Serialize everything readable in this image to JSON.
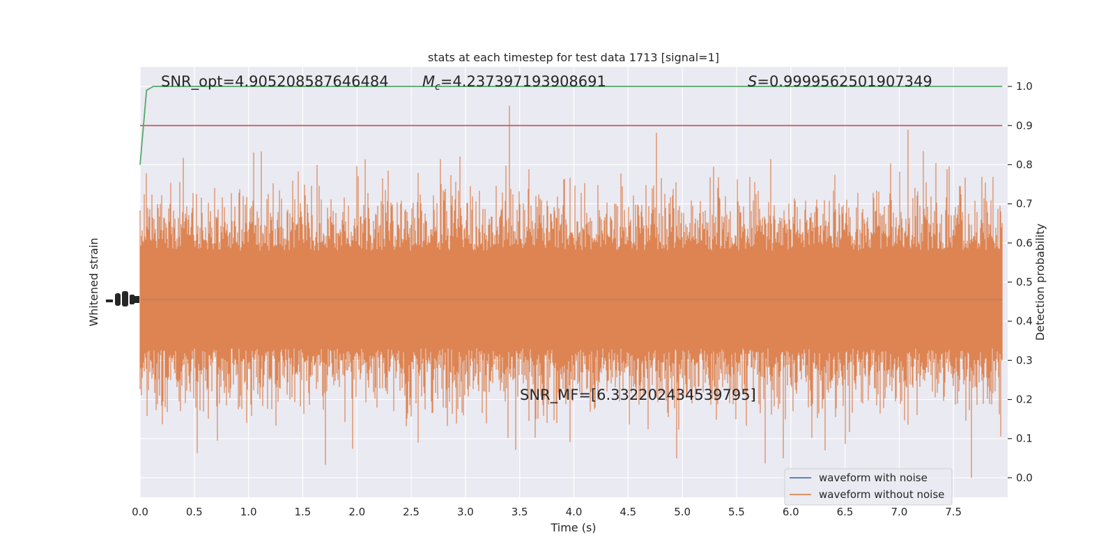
{
  "chart_data": {
    "type": "line",
    "title": "stats at each timestep for test data 1713 [signal=1]",
    "xlabel": "Time (s)",
    "ylabel_left": "Whitened strain",
    "ylabel_right": "Detection probability",
    "xlim": [
      0.0,
      8.0
    ],
    "xticks": [
      0.0,
      0.5,
      1.0,
      1.5,
      2.0,
      2.5,
      3.0,
      3.5,
      4.0,
      4.5,
      5.0,
      5.5,
      6.0,
      6.5,
      7.0,
      7.5
    ],
    "xtick_labels": [
      "0.0",
      "0.5",
      "1.0",
      "1.5",
      "2.0",
      "2.5",
      "3.0",
      "3.5",
      "4.0",
      "4.5",
      "5.0",
      "5.5",
      "6.0",
      "6.5",
      "7.0",
      "7.5"
    ],
    "ylim_right": [
      -0.05,
      1.05
    ],
    "yticks_right": [
      0.0,
      0.1,
      0.2,
      0.3,
      0.4,
      0.5,
      0.6,
      0.7,
      0.8,
      0.9,
      1.0
    ],
    "ytick_labels_right": [
      "0.0",
      "0.1",
      "0.2",
      "0.3",
      "0.4",
      "0.5",
      "0.6",
      "0.7",
      "0.8",
      "0.9",
      "1.0"
    ],
    "grid": true,
    "legend_position": "bottom-right",
    "series": [
      {
        "name": "waveform with noise",
        "color": "#4c72b0"
      },
      {
        "name": "waveform without noise",
        "color": "#dd8452"
      }
    ],
    "detection_probability": {
      "color": "#55a868",
      "x": [
        0.0,
        0.06,
        0.12,
        0.2,
        8.0
      ],
      "y": [
        0.8,
        0.99,
        1.0,
        1.0,
        1.0
      ]
    },
    "threshold": {
      "value": 0.9,
      "color": "#c44e52"
    },
    "annotations": {
      "snr_opt": "SNR_opt=4.905208587646484",
      "mc_symbol": "M",
      "mc_subscript": "c",
      "mc_value": "=4.237397193908691",
      "s_symbol": "S",
      "s_value": "=0.9999562501907349",
      "snr_mf": "SNR_MF=[6.332202434539795]"
    }
  }
}
